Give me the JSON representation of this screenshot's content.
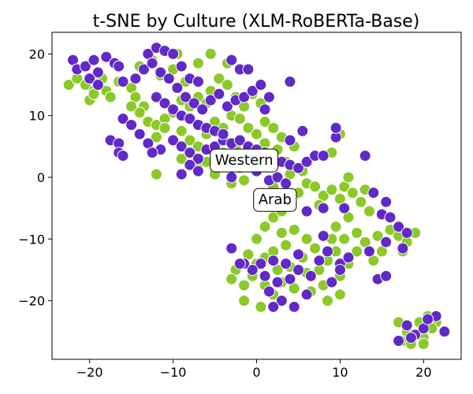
{
  "chart_data": {
    "type": "scatter",
    "title": "t-SNE by Culture (XLM-RoBERTa-Base)",
    "xlabel": "",
    "ylabel": "",
    "xlim": [
      -24.5,
      24.5
    ],
    "ylim": [
      -29.5,
      23.5
    ],
    "xticks": [
      -20,
      -10,
      0,
      10,
      20
    ],
    "yticks": [
      -20,
      -10,
      0,
      10,
      20
    ],
    "xtick_labels": [
      "−20",
      "−10",
      "0",
      "10",
      "20"
    ],
    "ytick_labels": [
      "−20",
      "−10",
      "0",
      "10",
      "20"
    ],
    "grid": false,
    "legend": null,
    "annotations": [
      {
        "text": "Western",
        "x": -1.5,
        "y": 2.8
      },
      {
        "text": "Arab",
        "x": 2.2,
        "y": -3.6
      }
    ],
    "series": [
      {
        "color": "#8ac926",
        "points": [
          [
            -22.5,
            15
          ],
          [
            -21.5,
            16
          ],
          [
            -20.5,
            15
          ],
          [
            -19.5,
            14
          ],
          [
            -20,
            12.5
          ],
          [
            -19.5,
            13.5
          ],
          [
            -18,
            14
          ],
          [
            -17.5,
            13
          ],
          [
            -18.5,
            16
          ],
          [
            -16.5,
            15.5
          ],
          [
            -15,
            14.5
          ],
          [
            -14.5,
            13
          ],
          [
            -13.5,
            11.5
          ],
          [
            -14,
            10.5
          ],
          [
            -15,
            11.5
          ],
          [
            -13,
            9
          ],
          [
            -12,
            8.5
          ],
          [
            -11,
            9.5
          ],
          [
            -10,
            10.5
          ],
          [
            -9,
            12.5
          ],
          [
            -8,
            11.5
          ],
          [
            -7,
            13
          ],
          [
            -6,
            12
          ],
          [
            -5.5,
            14
          ],
          [
            -4.5,
            16
          ],
          [
            -3.5,
            15
          ],
          [
            -2.5,
            13
          ],
          [
            -1.5,
            11.5
          ],
          [
            -0.5,
            13.5
          ],
          [
            0.5,
            12
          ],
          [
            -12,
            6.5
          ],
          [
            -11,
            8
          ],
          [
            -9,
            7.5
          ],
          [
            -8,
            6
          ],
          [
            -7,
            5
          ],
          [
            -6,
            7
          ],
          [
            -5,
            9
          ],
          [
            -4,
            8
          ],
          [
            -3,
            10
          ],
          [
            -2,
            9.5
          ],
          [
            -1,
            8
          ],
          [
            0,
            7
          ],
          [
            1,
            9
          ],
          [
            2,
            8
          ],
          [
            -11.5,
            16.5
          ],
          [
            -10,
            17.5
          ],
          [
            -8.5,
            15.5
          ],
          [
            -14,
            18
          ],
          [
            -12.5,
            19
          ],
          [
            -9.5,
            20
          ],
          [
            -7,
            18.5
          ],
          [
            -5.5,
            20
          ],
          [
            -3.5,
            18.5
          ],
          [
            -12,
            0.5
          ],
          [
            -9,
            3
          ],
          [
            -7,
            1.5
          ],
          [
            -6,
            2.5
          ],
          [
            -5,
            0.5
          ],
          [
            -3,
            -1
          ],
          [
            -1.5,
            -0.5
          ],
          [
            -2,
            1.5
          ],
          [
            2.5,
            4.5
          ],
          [
            3.5,
            2.5
          ],
          [
            4,
            0.5
          ],
          [
            5.5,
            1
          ],
          [
            6,
            -1
          ],
          [
            5,
            -2.5
          ],
          [
            3,
            -3
          ],
          [
            2,
            -1.5
          ],
          [
            0.5,
            -4.5
          ],
          [
            7,
            -1.5
          ],
          [
            8,
            -3
          ],
          [
            7.5,
            -4.5
          ],
          [
            9,
            -2
          ],
          [
            10,
            -3.5
          ],
          [
            10.5,
            -1.5
          ],
          [
            11.5,
            -2.5
          ],
          [
            12.5,
            -4
          ],
          [
            13,
            -2
          ],
          [
            13.5,
            -5.5
          ],
          [
            11,
            -6.5
          ],
          [
            9.5,
            -8
          ],
          [
            12,
            -9
          ],
          [
            13,
            -10.5
          ],
          [
            14.5,
            -9.5
          ],
          [
            15,
            -12
          ],
          [
            16,
            -8.5
          ],
          [
            17,
            -9.5
          ],
          [
            18,
            -10.5
          ],
          [
            19,
            -9
          ],
          [
            17.5,
            -12
          ],
          [
            14,
            -13.5
          ],
          [
            12,
            -12
          ],
          [
            11,
            -14
          ],
          [
            10,
            -16
          ],
          [
            9.5,
            -12
          ],
          [
            8.5,
            -13.5
          ],
          [
            7.5,
            -15
          ],
          [
            8,
            -17.5
          ],
          [
            6.5,
            -18.5
          ],
          [
            4.5,
            -18
          ],
          [
            3,
            -17
          ],
          [
            2,
            -19
          ],
          [
            1,
            -17.5
          ],
          [
            -0.5,
            -16
          ],
          [
            -1.5,
            -17.5
          ],
          [
            -2.5,
            -15
          ],
          [
            -3,
            -16.5
          ],
          [
            0,
            -14
          ],
          [
            1,
            -13
          ],
          [
            2,
            -12
          ],
          [
            3.5,
            -11
          ],
          [
            3,
            -9
          ],
          [
            4.5,
            -8.5
          ],
          [
            6,
            -10
          ],
          [
            7,
            -11.5
          ],
          [
            5.5,
            -13
          ],
          [
            4,
            -14.5
          ],
          [
            2.5,
            -15
          ],
          [
            6,
            -15.5
          ],
          [
            -1,
            -12.5
          ],
          [
            0,
            -10
          ],
          [
            1,
            -8
          ],
          [
            2,
            -6.5
          ],
          [
            3,
            -5.5
          ],
          [
            17.5,
            -26.5
          ],
          [
            18,
            -25
          ],
          [
            19.5,
            -23.5
          ],
          [
            20.5,
            -22.5
          ],
          [
            21.5,
            -23.5
          ],
          [
            20,
            -26
          ],
          [
            18.5,
            -27
          ],
          [
            20,
            -27
          ],
          [
            21,
            -24.5
          ],
          [
            17,
            -23.5
          ],
          [
            -1.5,
            -20
          ],
          [
            0.5,
            -21
          ],
          [
            8.5,
            -20
          ],
          [
            10,
            -19
          ],
          [
            9,
            -10
          ],
          [
            10.5,
            -10
          ],
          [
            9,
            4
          ],
          [
            11,
            0
          ],
          [
            9.5,
            8
          ],
          [
            10,
            7
          ],
          [
            -4,
            4
          ],
          [
            -2.5,
            5
          ],
          [
            1,
            5.5
          ],
          [
            3,
            6.5
          ],
          [
            4.5,
            5
          ]
        ]
      },
      {
        "color": "#6129c7",
        "points": [
          [
            -22,
            19
          ],
          [
            -21.5,
            17.5
          ],
          [
            -20.5,
            18
          ],
          [
            -19.5,
            19
          ],
          [
            -19,
            17
          ],
          [
            -18,
            19.5
          ],
          [
            -17,
            18.5
          ],
          [
            -16.5,
            18
          ],
          [
            -20,
            16
          ],
          [
            -19,
            15
          ],
          [
            -16,
            15.5
          ],
          [
            -14.5,
            16
          ],
          [
            -13.5,
            17.5
          ],
          [
            -13,
            20
          ],
          [
            -12,
            21
          ],
          [
            -11,
            20.5
          ],
          [
            -10,
            20
          ],
          [
            -9,
            18
          ],
          [
            -8,
            16
          ],
          [
            -7,
            15.5
          ],
          [
            -12.5,
            18.5
          ],
          [
            -11.5,
            17
          ],
          [
            -10.5,
            16
          ],
          [
            -9.5,
            14.5
          ],
          [
            -8.5,
            13
          ],
          [
            -7.5,
            12
          ],
          [
            -6.5,
            11
          ],
          [
            -5.5,
            12.5
          ],
          [
            -4.5,
            13.5
          ],
          [
            -3.5,
            11.5
          ],
          [
            -2.5,
            12.5
          ],
          [
            -1.5,
            13
          ],
          [
            -0.5,
            14
          ],
          [
            0.5,
            15
          ],
          [
            1.5,
            13
          ],
          [
            -3,
            19
          ],
          [
            -2,
            17.5
          ],
          [
            -1,
            17.5
          ],
          [
            -16,
            9.5
          ],
          [
            -15,
            8.5
          ],
          [
            -14,
            7
          ],
          [
            -13,
            5.5
          ],
          [
            -11.5,
            4.5
          ],
          [
            -10,
            6
          ],
          [
            -9,
            5
          ],
          [
            -8,
            4
          ],
          [
            -7,
            3
          ],
          [
            -6,
            4.5
          ],
          [
            -5,
            5
          ],
          [
            -4,
            6
          ],
          [
            -3,
            5.5
          ],
          [
            -2,
            6
          ],
          [
            -1,
            5
          ],
          [
            0,
            4.5
          ],
          [
            1,
            4
          ],
          [
            2,
            3
          ],
          [
            3,
            2.5
          ],
          [
            4,
            2
          ],
          [
            5,
            1.5
          ],
          [
            6,
            2.5
          ],
          [
            -8,
            2
          ],
          [
            -7,
            1
          ],
          [
            -3,
            0
          ],
          [
            -1.5,
            2
          ],
          [
            0,
            1
          ],
          [
            1.5,
            -0.5
          ],
          [
            2.5,
            0
          ],
          [
            3.5,
            -1
          ],
          [
            -12,
            13
          ],
          [
            -11,
            12
          ],
          [
            -10,
            11
          ],
          [
            -9,
            10
          ],
          [
            -8,
            9.5
          ],
          [
            -7,
            8.5
          ],
          [
            -6,
            8
          ],
          [
            -5,
            7.5
          ],
          [
            -4,
            7
          ],
          [
            -17.5,
            6
          ],
          [
            -16.5,
            5.5
          ],
          [
            -16.5,
            4
          ],
          [
            -16,
            3.5
          ],
          [
            -12.5,
            4
          ],
          [
            -9,
            0.5
          ],
          [
            0,
            3
          ],
          [
            4,
            6
          ],
          [
            5.5,
            7.5
          ],
          [
            7,
            3.5
          ],
          [
            8,
            3.5
          ],
          [
            4,
            15.5
          ],
          [
            1,
            11
          ],
          [
            9.5,
            6.5
          ],
          [
            9.5,
            8
          ],
          [
            13,
            3.5
          ],
          [
            10.5,
            -5
          ],
          [
            8,
            -5
          ],
          [
            6,
            -5.5
          ],
          [
            8,
            -9.5
          ],
          [
            5,
            -12.5
          ],
          [
            3.5,
            -14
          ],
          [
            2,
            -13.5
          ],
          [
            0.5,
            -14
          ],
          [
            -0.5,
            -15
          ],
          [
            -1.5,
            -14
          ],
          [
            -3,
            -11.5
          ],
          [
            -2,
            -14
          ],
          [
            1,
            -16
          ],
          [
            2.5,
            -17
          ],
          [
            4,
            -16.5
          ],
          [
            5,
            -15
          ],
          [
            6.5,
            -16
          ],
          [
            7.5,
            -13.5
          ],
          [
            8.5,
            -12
          ],
          [
            10,
            -14
          ],
          [
            11,
            -13
          ],
          [
            10,
            -15
          ],
          [
            3,
            -20
          ],
          [
            4.5,
            -21
          ],
          [
            2,
            -21
          ],
          [
            6,
            -19
          ],
          [
            1.5,
            -18.5
          ],
          [
            9,
            -17
          ],
          [
            14.5,
            -16.5
          ],
          [
            15.5,
            -16
          ],
          [
            15,
            -6
          ],
          [
            16,
            -6.5
          ],
          [
            17,
            -8
          ],
          [
            15.5,
            -10.5
          ],
          [
            17.5,
            -11.5
          ],
          [
            13.5,
            -12
          ],
          [
            18,
            -9
          ],
          [
            17,
            -26.5
          ],
          [
            18,
            -24
          ],
          [
            19,
            -25.5
          ],
          [
            20,
            -24.5
          ],
          [
            21.5,
            -22.5
          ],
          [
            22.5,
            -25
          ],
          [
            18.5,
            -26
          ],
          [
            20.5,
            -23
          ],
          [
            14,
            -2.5
          ],
          [
            15.5,
            -4
          ]
        ]
      }
    ]
  }
}
